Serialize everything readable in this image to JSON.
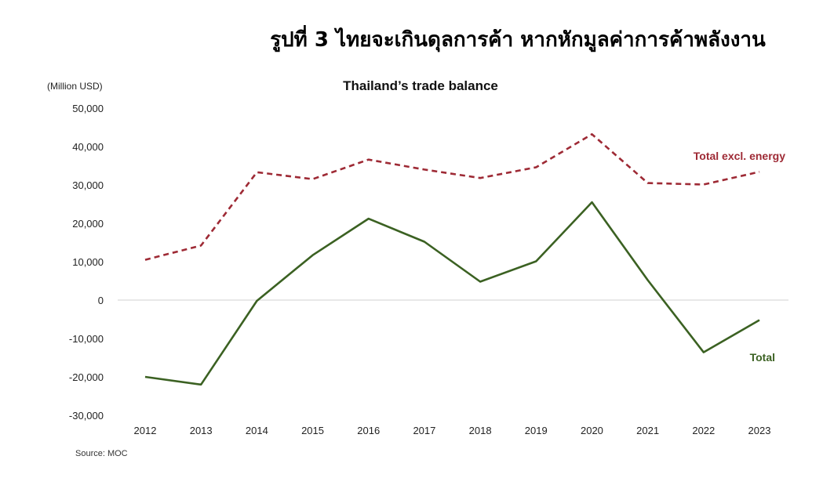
{
  "figure_title": "รูปที่ 3 ไทยจะเกินดุลการค้า หากหักมูลค่าการค้าพลังงาน",
  "chart_data": {
    "type": "line",
    "title": "Thailand’s trade balance",
    "unit_label": "(Million USD)",
    "source": "Source: MOC",
    "x": [
      "2012",
      "2013",
      "2014",
      "2015",
      "2016",
      "2017",
      "2018",
      "2019",
      "2020",
      "2021",
      "2022",
      "2023"
    ],
    "ylim": [
      -30000,
      50000
    ],
    "yticks": [
      50000,
      40000,
      30000,
      20000,
      10000,
      0,
      -10000,
      -20000,
      -30000
    ],
    "ytick_labels": [
      "50,000",
      "40,000",
      "30,000",
      "20,000",
      "10,000",
      "0",
      "-10,000",
      "-20,000",
      "-30,000"
    ],
    "grid": false,
    "series": [
      {
        "name": "Total excl. energy",
        "style": "dashed",
        "color": "#9e2a35",
        "values": [
          10500,
          14200,
          33300,
          31500,
          36600,
          34000,
          31800,
          34600,
          43200,
          30500,
          30100,
          33400
        ]
      },
      {
        "name": "Total",
        "style": "solid",
        "color": "#3b6122",
        "values": [
          -20000,
          -22000,
          -200,
          11700,
          21200,
          15200,
          4800,
          10100,
          25500,
          5200,
          -13600,
          -5200
        ]
      }
    ]
  }
}
